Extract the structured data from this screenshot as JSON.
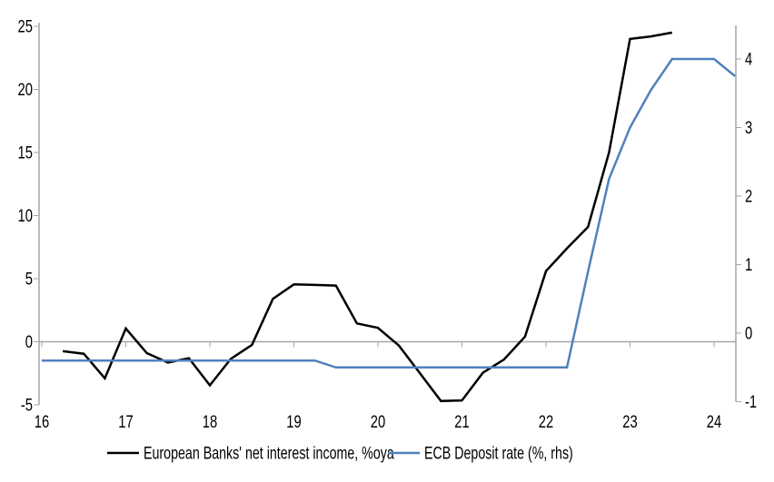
{
  "chart_data": {
    "type": "line",
    "title": "",
    "x_axis": {
      "ticks": [
        16,
        17,
        18,
        19,
        20,
        21,
        22,
        23,
        24
      ],
      "range": [
        16,
        24.3
      ],
      "label": ""
    },
    "y_axis_left": {
      "ticks": [
        -5,
        0,
        5,
        10,
        15,
        20,
        25
      ],
      "range": [
        -5,
        25.3
      ],
      "label": ""
    },
    "y_axis_right": {
      "ticks": [
        -1,
        0,
        1,
        2,
        3,
        4
      ],
      "range": [
        -1,
        4.55
      ],
      "label": ""
    },
    "grid": "horizontal zero line only",
    "legend_position": "bottom",
    "series": [
      {
        "id": "european-banks-nii",
        "name": "European Banks' net interest income, %oya",
        "axis": "left",
        "color": "#000000",
        "x": [
          16.25,
          16.5,
          16.75,
          17.0,
          17.25,
          17.5,
          17.75,
          18.0,
          18.25,
          18.5,
          18.75,
          19.0,
          19.25,
          19.5,
          19.75,
          20.0,
          20.25,
          20.5,
          20.75,
          21.0,
          21.25,
          21.5,
          21.75,
          22.0,
          22.25,
          22.5,
          22.75,
          23.0,
          23.25,
          23.5
        ],
        "values": [
          -0.75,
          -0.95,
          -2.9,
          1.05,
          -0.9,
          -1.65,
          -1.3,
          -3.45,
          -1.35,
          -0.25,
          3.4,
          4.55,
          4.5,
          4.45,
          1.45,
          1.1,
          -0.3,
          -2.5,
          -4.7,
          -4.65,
          -2.45,
          -1.4,
          0.4,
          5.6,
          7.4,
          9.1,
          15.0,
          24.0,
          24.2,
          24.5
        ]
      },
      {
        "id": "ecb-deposit-rate",
        "name": "ECB Deposit rate (%, rhs)",
        "axis": "right",
        "color": "#4f81bd",
        "x": [
          16.0,
          19.25,
          19.5,
          22.25,
          22.5,
          22.75,
          23.0,
          23.25,
          23.5,
          23.75,
          24.0,
          24.25
        ],
        "values": [
          -0.4,
          -0.4,
          -0.5,
          -0.5,
          0.9,
          2.25,
          3.0,
          3.55,
          4.0,
          4.0,
          4.0,
          3.75
        ]
      }
    ]
  },
  "colors": {
    "background": "#ffffff",
    "axis": "#a6a6a6",
    "zero_line": "#a6a6a6",
    "text": "#000000",
    "series_black": "#000000",
    "series_blue": "#4f81bd"
  }
}
